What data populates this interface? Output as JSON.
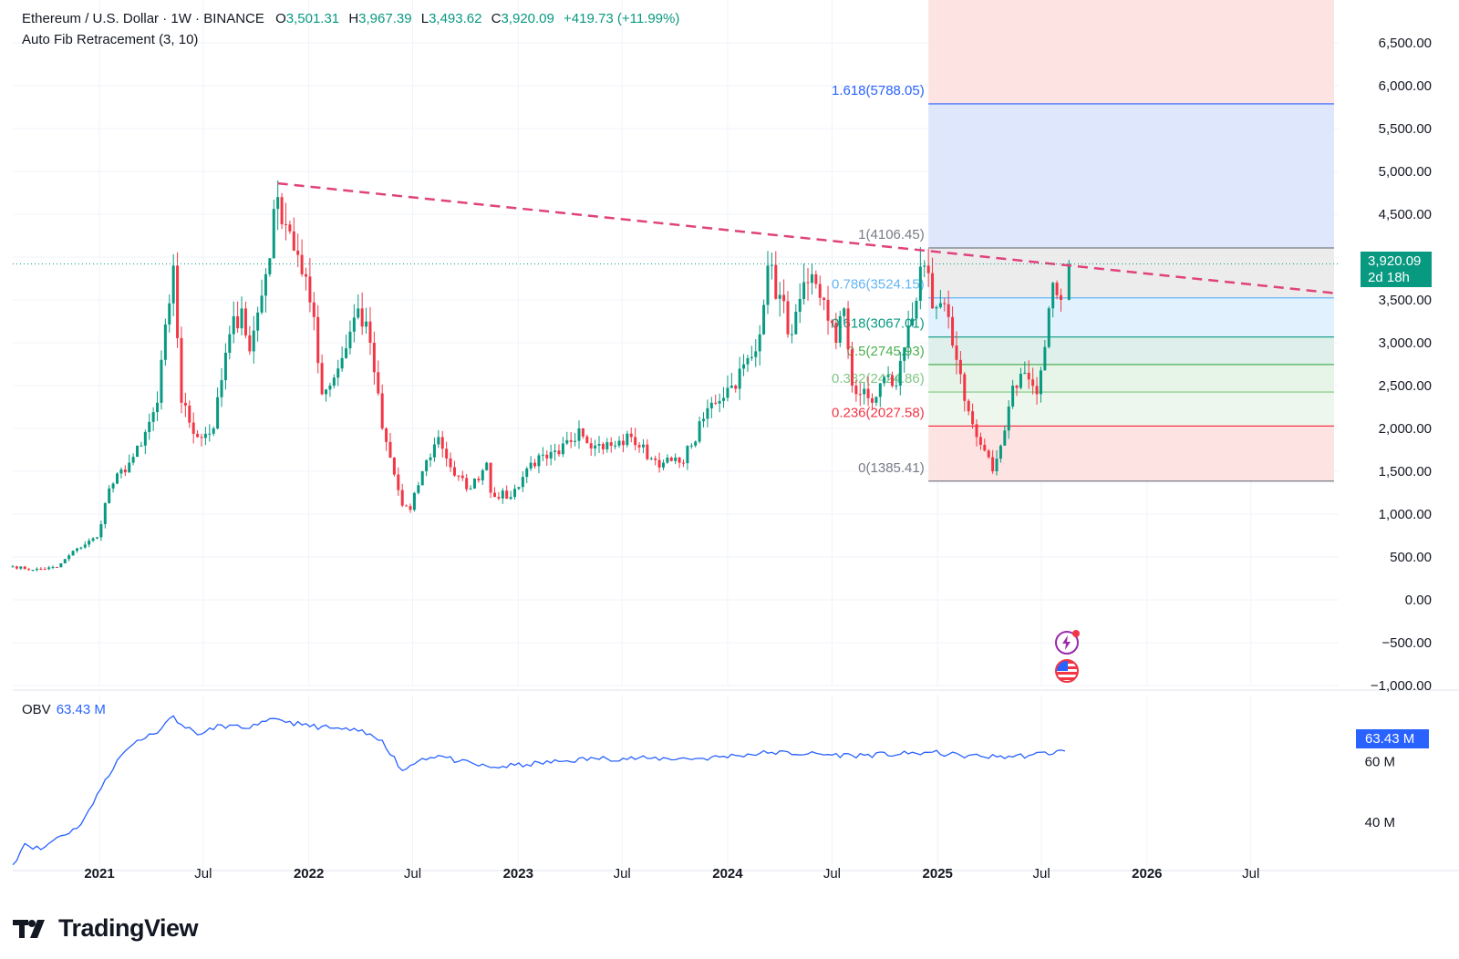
{
  "header": {
    "symbol": "Ethereum / U.S. Dollar · 1W · BINANCE",
    "o_label": "O",
    "o_value": "3,501.31",
    "h_label": "H",
    "h_value": "3,967.39",
    "l_label": "L",
    "l_value": "3,493.62",
    "c_label": "C",
    "c_value": "3,920.09",
    "change": "+419.73 (+11.99%)"
  },
  "indicator": "Auto Fib Retracement (3, 10)",
  "price_tag": {
    "price": "3,920.09",
    "countdown": "2d 18h"
  },
  "obv": {
    "label": "OBV",
    "value": "63.43 M",
    "tag": "63.43 M"
  },
  "brand": "TradingView",
  "icons": [
    "lightning-event-icon",
    "us-flag-event-icon",
    "tradingview-logo-icon"
  ],
  "colors": {
    "up": "#089981",
    "down": "#f23645",
    "trendline": "#e0427a",
    "obv": "#2962ff"
  },
  "chart_data": {
    "type": "candlestick",
    "interval": "1W",
    "ylim": [
      -1000,
      7000
    ],
    "y_ticks": [
      {
        "v": 6500,
        "label": "6,500.00"
      },
      {
        "v": 6000,
        "label": "6,000.00"
      },
      {
        "v": 5500,
        "label": "5,500.00"
      },
      {
        "v": 5000,
        "label": "5,000.00"
      },
      {
        "v": 4500,
        "label": "4,500.00"
      },
      {
        "v": 4000,
        "label": "4,000.00"
      },
      {
        "v": 3500,
        "label": "3,500.00"
      },
      {
        "v": 3000,
        "label": "3,000.00"
      },
      {
        "v": 2500,
        "label": "2,500.00"
      },
      {
        "v": 2000,
        "label": "2,000.00"
      },
      {
        "v": 1500,
        "label": "1,500.00"
      },
      {
        "v": 1000,
        "label": "1,000.00"
      },
      {
        "v": 500,
        "label": "500.00"
      },
      {
        "v": 0,
        "label": "0.00"
      },
      {
        "v": -500,
        "label": "−500.00"
      },
      {
        "v": -1000,
        "label": "−1,000.00"
      }
    ],
    "x_range": [
      "2020-08-03",
      "2026-12-01"
    ],
    "x_ticks": [
      {
        "date": "2021-01-01",
        "label": "2021",
        "bold": true
      },
      {
        "date": "2021-07-01",
        "label": "Jul",
        "bold": false
      },
      {
        "date": "2022-01-01",
        "label": "2022",
        "bold": true
      },
      {
        "date": "2022-07-01",
        "label": "Jul",
        "bold": false
      },
      {
        "date": "2023-01-01",
        "label": "2023",
        "bold": true
      },
      {
        "date": "2023-07-01",
        "label": "Jul",
        "bold": false
      },
      {
        "date": "2024-01-01",
        "label": "2024",
        "bold": true
      },
      {
        "date": "2024-07-01",
        "label": "Jul",
        "bold": false
      },
      {
        "date": "2025-01-01",
        "label": "2025",
        "bold": true
      },
      {
        "date": "2025-07-01",
        "label": "Jul",
        "bold": false
      },
      {
        "date": "2026-01-01",
        "label": "2026",
        "bold": true
      },
      {
        "date": "2026-07-01",
        "label": "Jul",
        "bold": false
      }
    ],
    "price_anchors": [
      [
        "2020-08-03",
        390
      ],
      [
        "2020-09-07",
        350
      ],
      [
        "2020-10-19",
        380
      ],
      [
        "2020-11-23",
        600
      ],
      [
        "2020-12-28",
        730
      ],
      [
        "2021-01-18",
        1300
      ],
      [
        "2021-02-22",
        1600
      ],
      [
        "2021-03-15",
        1800
      ],
      [
        "2021-04-12",
        2300
      ],
      [
        "2021-05-10",
        3900
      ],
      [
        "2021-05-24",
        2300
      ],
      [
        "2021-06-21",
        1900
      ],
      [
        "2021-07-19",
        2000
      ],
      [
        "2021-08-16",
        3100
      ],
      [
        "2021-09-06",
        3400
      ],
      [
        "2021-09-20",
        2900
      ],
      [
        "2021-10-18",
        3800
      ],
      [
        "2021-11-08",
        4700
      ],
      [
        "2021-11-29",
        4300
      ],
      [
        "2021-12-20",
        3800
      ],
      [
        "2022-01-10",
        3300
      ],
      [
        "2022-01-24",
        2400
      ],
      [
        "2022-02-21",
        2700
      ],
      [
        "2022-03-28",
        3400
      ],
      [
        "2022-04-18",
        3000
      ],
      [
        "2022-05-09",
        2000
      ],
      [
        "2022-06-13",
        1100
      ],
      [
        "2022-06-27",
        1050
      ],
      [
        "2022-07-18",
        1500
      ],
      [
        "2022-08-15",
        1900
      ],
      [
        "2022-09-12",
        1450
      ],
      [
        "2022-10-10",
        1300
      ],
      [
        "2022-11-07",
        1600
      ],
      [
        "2022-11-14",
        1250
      ],
      [
        "2022-12-19",
        1200
      ],
      [
        "2023-01-23",
        1600
      ],
      [
        "2023-02-20",
        1650
      ],
      [
        "2023-03-13",
        1700
      ],
      [
        "2023-04-17",
        2000
      ],
      [
        "2023-05-15",
        1800
      ],
      [
        "2023-06-19",
        1800
      ],
      [
        "2023-07-17",
        1900
      ],
      [
        "2023-08-21",
        1650
      ],
      [
        "2023-09-11",
        1600
      ],
      [
        "2023-10-09",
        1600
      ],
      [
        "2023-10-30",
        1800
      ],
      [
        "2023-12-04",
        2300
      ],
      [
        "2024-01-08",
        2500
      ],
      [
        "2024-02-19",
        2900
      ],
      [
        "2024-03-11",
        3900
      ],
      [
        "2024-04-22",
        3100
      ],
      [
        "2024-05-20",
        3700
      ],
      [
        "2024-06-17",
        3500
      ],
      [
        "2024-07-08",
        3000
      ],
      [
        "2024-07-22",
        3400
      ],
      [
        "2024-08-05",
        2500
      ],
      [
        "2024-09-09",
        2300
      ],
      [
        "2024-09-30",
        2600
      ],
      [
        "2024-10-21",
        2500
      ],
      [
        "2024-11-11",
        3200
      ],
      [
        "2024-12-09",
        3900
      ],
      [
        "2024-12-23",
        3400
      ],
      [
        "2025-01-20",
        3300
      ],
      [
        "2025-02-03",
        2800
      ],
      [
        "2025-02-24",
        2200
      ],
      [
        "2025-03-10",
        1900
      ],
      [
        "2025-04-07",
        1500
      ],
      [
        "2025-04-21",
        1800
      ],
      [
        "2025-05-12",
        2500
      ],
      [
        "2025-06-02",
        2650
      ],
      [
        "2025-06-23",
        2400
      ],
      [
        "2025-07-07",
        2950
      ],
      [
        "2025-07-21",
        3700
      ],
      [
        "2025-08-04",
        3500
      ],
      [
        "2025-08-11",
        3920.09
      ]
    ],
    "last_candle": {
      "o": 3501.31,
      "h": 3967.39,
      "l": 3493.62,
      "c": 3920.09
    },
    "current_price_line": 3920.09,
    "trendline": {
      "start": [
        "2021-11-08",
        4860
      ],
      "end": [
        "2026-11-23",
        3580
      ]
    },
    "fib": {
      "start_date": "2024-12-16",
      "end_date": "2026-11-23",
      "label_date": "2024-12-09",
      "levels": [
        {
          "ratio": "1.618",
          "price": 5788.05,
          "label": "1.618(5788.05)",
          "color": "#2962ff"
        },
        {
          "ratio": "1",
          "price": 4106.45,
          "label": "1(4106.45)",
          "color": "#787b86"
        },
        {
          "ratio": "0.786",
          "price": 3524.15,
          "label": "0.786(3524.15)",
          "color": "#64b5f6"
        },
        {
          "ratio": "0.618",
          "price": 3067.01,
          "label": "0.618(3067.01)",
          "color": "#089981"
        },
        {
          "ratio": "0.5",
          "price": 2745.93,
          "label": "0.5(2745.93)",
          "color": "#4caf50"
        },
        {
          "ratio": "0.382",
          "price": 2424.86,
          "label": "0.382(2424.86)",
          "color": "#81c784"
        },
        {
          "ratio": "0.236",
          "price": 2027.58,
          "label": "0.236(2027.58)",
          "color": "#f23645"
        },
        {
          "ratio": "0",
          "price": 1385.41,
          "label": "0(1385.41)",
          "color": "#787b86"
        }
      ]
    },
    "obv": {
      "ylim": [
        25,
        82
      ],
      "y_ticks": [
        {
          "v": 60,
          "label": "60 M"
        },
        {
          "v": 40,
          "label": "40 M"
        }
      ],
      "anchors": [
        [
          "2020-08-03",
          26
        ],
        [
          "2020-08-24",
          33
        ],
        [
          "2020-09-21",
          31
        ],
        [
          "2020-10-19",
          35
        ],
        [
          "2020-11-23",
          38
        ],
        [
          "2020-12-21",
          46
        ],
        [
          "2021-01-11",
          54
        ],
        [
          "2021-02-08",
          62
        ],
        [
          "2021-03-08",
          67
        ],
        [
          "2021-04-05",
          69
        ],
        [
          "2021-05-10",
          75
        ],
        [
          "2021-05-31",
          71
        ],
        [
          "2021-06-28",
          69
        ],
        [
          "2021-08-02",
          72
        ],
        [
          "2021-09-06",
          71
        ],
        [
          "2021-10-04",
          72
        ],
        [
          "2021-11-08",
          74
        ],
        [
          "2021-12-20",
          72
        ],
        [
          "2022-02-07",
          71
        ],
        [
          "2022-03-28",
          70
        ],
        [
          "2022-05-09",
          67
        ],
        [
          "2022-06-13",
          57
        ],
        [
          "2022-07-18",
          61
        ],
        [
          "2022-08-15",
          62
        ],
        [
          "2022-09-19",
          60
        ],
        [
          "2022-11-14",
          58
        ],
        [
          "2023-01-16",
          59
        ],
        [
          "2023-03-13",
          60
        ],
        [
          "2023-05-15",
          61
        ],
        [
          "2023-08-21",
          61
        ],
        [
          "2023-11-20",
          61
        ],
        [
          "2024-01-15",
          62
        ],
        [
          "2024-03-18",
          63
        ],
        [
          "2024-05-20",
          62.5
        ],
        [
          "2024-08-05",
          62
        ],
        [
          "2024-11-11",
          62.5
        ],
        [
          "2024-12-16",
          63
        ],
        [
          "2025-02-10",
          62
        ],
        [
          "2025-04-14",
          61.5
        ],
        [
          "2025-06-09",
          62
        ],
        [
          "2025-08-11",
          63.43
        ]
      ]
    }
  }
}
